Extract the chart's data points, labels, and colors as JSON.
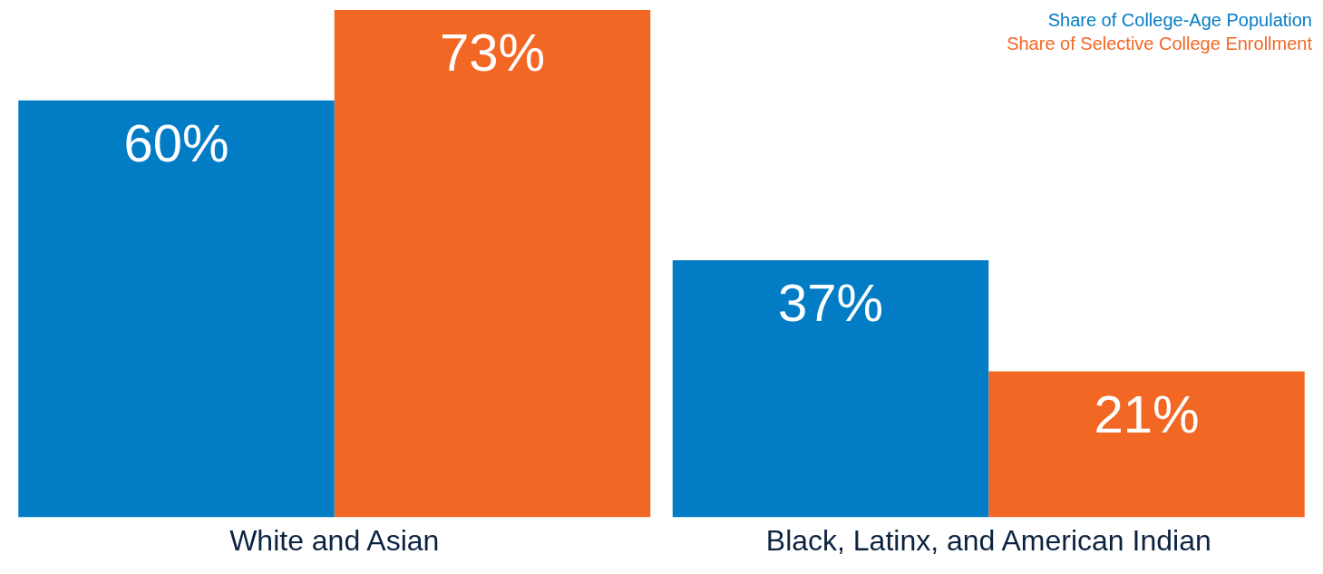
{
  "chart_data": {
    "type": "bar",
    "categories": [
      "White and Asian",
      "Black, Latinx, and American Indian"
    ],
    "series": [
      {
        "name": "Share of College-Age Population",
        "color": "#037cc6",
        "values": [
          60,
          37
        ],
        "value_labels": [
          "60%",
          "37%"
        ]
      },
      {
        "name": "Share of Selective College Enrollment",
        "color": "#f26724",
        "values": [
          73,
          21
        ],
        "value_labels": [
          "73%",
          "21%"
        ]
      }
    ],
    "legend": "top right",
    "grid": false
  }
}
